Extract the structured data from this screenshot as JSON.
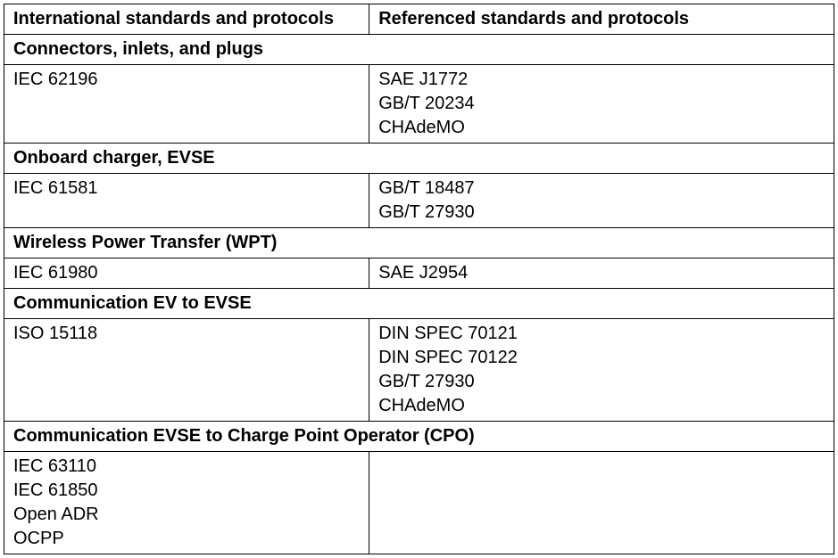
{
  "headers": {
    "left": "International standards and protocols",
    "right": "Referenced standards and protocols"
  },
  "sections": [
    {
      "title": "Connectors, inlets, and plugs",
      "rows": [
        {
          "left": [
            "IEC 62196"
          ],
          "right": [
            "SAE J1772",
            "GB/T 20234",
            "CHAdeMO"
          ]
        }
      ]
    },
    {
      "title": "Onboard charger, EVSE",
      "rows": [
        {
          "left": [
            "IEC 61581"
          ],
          "right": [
            "GB/T 18487",
            "GB/T 27930"
          ]
        }
      ]
    },
    {
      "title": "Wireless Power Transfer (WPT)",
      "rows": [
        {
          "left": [
            "IEC 61980"
          ],
          "right": [
            "SAE J2954"
          ]
        }
      ]
    },
    {
      "title": "Communication EV to EVSE",
      "rows": [
        {
          "left": [
            "ISO 15118"
          ],
          "right": [
            "DIN SPEC 70121",
            "DIN SPEC 70122",
            "GB/T 27930",
            "CHAdeMO"
          ]
        }
      ]
    },
    {
      "title": "Communication EVSE to Charge Point Operator (CPO)",
      "rows": [
        {
          "left": [
            "IEC 63110",
            "IEC 61850",
            "Open ADR",
            "OCPP"
          ],
          "right": []
        }
      ]
    }
  ]
}
